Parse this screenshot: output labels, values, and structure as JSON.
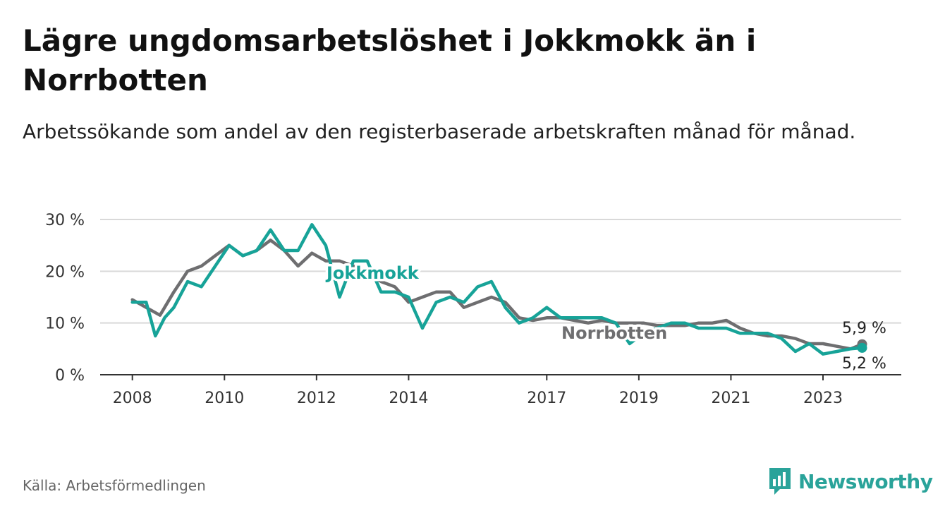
{
  "title": "Lägre ungdomsarbetslöshet i Jokkmokk än i Norrbotten",
  "subtitle": "Arbetssökande som andel av den registerbaserade arbetskraften månad för månad.",
  "source": "Källa: Arbetsförmedlingen",
  "brand": "Newsworthy",
  "colors": {
    "jokkmokk": "#17a398",
    "norrbotten": "#6e6e70",
    "grid": "#d9d9d9",
    "axis": "#333333",
    "brand": "#2aa39a"
  },
  "chart_data": {
    "type": "line",
    "title": "Lägre ungdomsarbetslöshet i Jokkmokk än i Norrbotten",
    "ylabel": "",
    "xlabel": "",
    "ylim": [
      0,
      30
    ],
    "xlim": [
      2007.3,
      2024.7
    ],
    "y_ticks": [
      0,
      10,
      20,
      30
    ],
    "y_tick_labels": [
      "0 %",
      "10 %",
      "20 %",
      "30 %"
    ],
    "x_ticks": [
      2008,
      2010,
      2012,
      2014,
      2017,
      2019,
      2021,
      2023
    ],
    "x_tick_labels": [
      "2008",
      "2010",
      "2012",
      "2014",
      "2017",
      "2019",
      "2021",
      "2023"
    ],
    "series": [
      {
        "name": "Norrbotten",
        "label": "Norrbotten",
        "end_label": "5,9 %",
        "x": [
          2008.0,
          2008.3,
          2008.6,
          2008.9,
          2009.2,
          2009.5,
          2009.8,
          2010.1,
          2010.4,
          2010.7,
          2011.0,
          2011.3,
          2011.6,
          2011.9,
          2012.2,
          2012.5,
          2012.8,
          2013.1,
          2013.4,
          2013.7,
          2014.0,
          2014.3,
          2014.6,
          2014.9,
          2015.2,
          2015.5,
          2015.8,
          2016.1,
          2016.4,
          2016.7,
          2017.0,
          2017.3,
          2017.6,
          2017.9,
          2018.2,
          2018.5,
          2018.8,
          2019.1,
          2019.4,
          2019.7,
          2020.0,
          2020.3,
          2020.6,
          2020.9,
          2021.2,
          2021.5,
          2021.8,
          2022.1,
          2022.4,
          2022.7,
          2023.0,
          2023.3,
          2023.6,
          2023.85
        ],
        "values": [
          14.5,
          13.0,
          11.5,
          16.0,
          20.0,
          21.0,
          23.0,
          25.0,
          23.0,
          24.0,
          26.0,
          24.0,
          21.0,
          23.5,
          22.0,
          22.0,
          21.0,
          20.0,
          18.0,
          17.0,
          14.0,
          15.0,
          16.0,
          16.0,
          13.0,
          14.0,
          15.0,
          14.0,
          11.0,
          10.5,
          11.0,
          11.0,
          10.5,
          10.0,
          10.5,
          10.0,
          10.0,
          10.0,
          9.5,
          9.5,
          9.5,
          10.0,
          10.0,
          10.5,
          9.0,
          8.0,
          7.5,
          7.5,
          7.0,
          6.0,
          6.0,
          5.5,
          5.0,
          5.9
        ]
      },
      {
        "name": "Jokkmokk",
        "label": "Jokkmokk",
        "end_label": "5,2 %",
        "x": [
          2008.0,
          2008.3,
          2008.5,
          2008.7,
          2008.9,
          2009.2,
          2009.5,
          2009.8,
          2010.1,
          2010.4,
          2010.7,
          2011.0,
          2011.3,
          2011.6,
          2011.9,
          2012.2,
          2012.5,
          2012.8,
          2013.1,
          2013.4,
          2013.7,
          2014.0,
          2014.3,
          2014.6,
          2014.9,
          2015.2,
          2015.5,
          2015.8,
          2016.1,
          2016.4,
          2016.7,
          2017.0,
          2017.3,
          2017.6,
          2017.9,
          2018.2,
          2018.5,
          2018.8,
          2019.1,
          2019.4,
          2019.7,
          2020.0,
          2020.3,
          2020.6,
          2020.9,
          2021.2,
          2021.5,
          2021.8,
          2022.1,
          2022.4,
          2022.7,
          2023.0,
          2023.3,
          2023.6,
          2023.85
        ],
        "values": [
          14.0,
          14.0,
          7.5,
          11.0,
          13.0,
          18.0,
          17.0,
          21.0,
          25.0,
          23.0,
          24.0,
          28.0,
          24.0,
          24.0,
          29.0,
          25.0,
          15.0,
          22.0,
          22.0,
          16.0,
          16.0,
          15.0,
          9.0,
          14.0,
          15.0,
          14.0,
          17.0,
          18.0,
          13.0,
          10.0,
          11.0,
          13.0,
          11.0,
          11.0,
          11.0,
          11.0,
          10.0,
          6.0,
          8.0,
          9.0,
          10.0,
          10.0,
          9.0,
          9.0,
          9.0,
          8.0,
          8.0,
          8.0,
          7.0,
          4.5,
          6.0,
          4.0,
          4.5,
          5.0,
          5.2
        ]
      }
    ]
  }
}
